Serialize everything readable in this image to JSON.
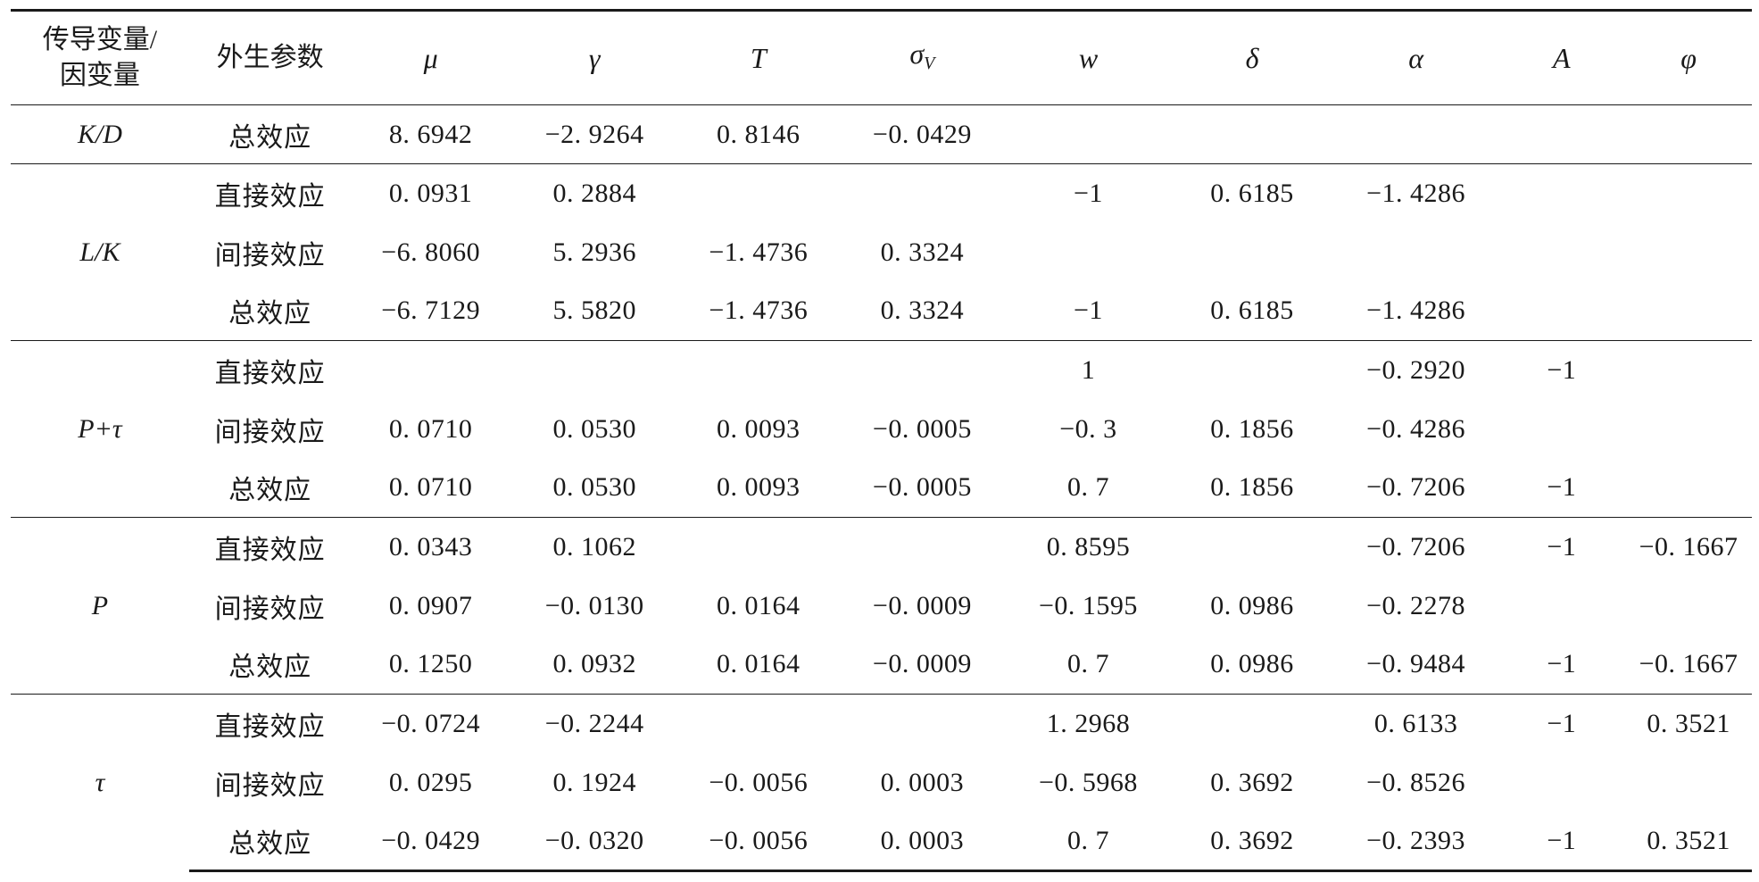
{
  "table": {
    "headers": {
      "col0_line1": "传导变量/",
      "col0_line2": "因变量",
      "col1": "外生参数",
      "mu": "μ",
      "gamma": "γ",
      "T": "T",
      "sigma": "σ",
      "sigma_sub": "V",
      "w": "w",
      "delta": "δ",
      "alpha": "α",
      "A": "A",
      "phi": "φ"
    },
    "groups": [
      {
        "variable": "K/D",
        "rows": [
          {
            "effect": "总效应",
            "mu": "8. 6942",
            "gamma": "−2. 9264",
            "T": "0. 8146",
            "sigma": "−0. 0429",
            "w": "",
            "delta": "",
            "alpha": "",
            "A": "",
            "phi": ""
          }
        ]
      },
      {
        "variable": "L/K",
        "rows": [
          {
            "effect": "直接效应",
            "mu": "0. 0931",
            "gamma": "0. 2884",
            "T": "",
            "sigma": "",
            "w": "−1",
            "delta": "0. 6185",
            "alpha": "−1. 4286",
            "A": "",
            "phi": ""
          },
          {
            "effect": "间接效应",
            "mu": "−6. 8060",
            "gamma": "5. 2936",
            "T": "−1. 4736",
            "sigma": "0. 3324",
            "w": "",
            "delta": "",
            "alpha": "",
            "A": "",
            "phi": ""
          },
          {
            "effect": "总效应",
            "mu": "−6. 7129",
            "gamma": "5. 5820",
            "T": "−1. 4736",
            "sigma": "0. 3324",
            "w": "−1",
            "delta": "0. 6185",
            "alpha": "−1. 4286",
            "A": "",
            "phi": ""
          }
        ]
      },
      {
        "variable": "P+τ",
        "rows": [
          {
            "effect": "直接效应",
            "mu": "",
            "gamma": "",
            "T": "",
            "sigma": "",
            "w": "1",
            "delta": "",
            "alpha": "−0. 2920",
            "A": "−1",
            "phi": ""
          },
          {
            "effect": "间接效应",
            "mu": "0. 0710",
            "gamma": "0. 0530",
            "T": "0. 0093",
            "sigma": "−0. 0005",
            "w": "−0. 3",
            "delta": "0. 1856",
            "alpha": "−0. 4286",
            "A": "",
            "phi": ""
          },
          {
            "effect": "总效应",
            "mu": "0. 0710",
            "gamma": "0. 0530",
            "T": "0. 0093",
            "sigma": "−0. 0005",
            "w": "0. 7",
            "delta": "0. 1856",
            "alpha": "−0. 7206",
            "A": "−1",
            "phi": ""
          }
        ]
      },
      {
        "variable": "P",
        "rows": [
          {
            "effect": "直接效应",
            "mu": "0. 0343",
            "gamma": "0. 1062",
            "T": "",
            "sigma": "",
            "w": "0. 8595",
            "delta": "",
            "alpha": "−0. 7206",
            "A": "−1",
            "phi": "−0. 1667"
          },
          {
            "effect": "间接效应",
            "mu": "0. 0907",
            "gamma": "−0. 0130",
            "T": "0. 0164",
            "sigma": "−0. 0009",
            "w": "−0. 1595",
            "delta": "0. 0986",
            "alpha": "−0. 2278",
            "A": "",
            "phi": ""
          },
          {
            "effect": "总效应",
            "mu": "0. 1250",
            "gamma": "0. 0932",
            "T": "0. 0164",
            "sigma": "−0. 0009",
            "w": "0. 7",
            "delta": "0. 0986",
            "alpha": "−0. 9484",
            "A": "−1",
            "phi": "−0. 1667"
          }
        ]
      },
      {
        "variable": "τ",
        "rows": [
          {
            "effect": "直接效应",
            "mu": "−0. 0724",
            "gamma": "−0. 2244",
            "T": "",
            "sigma": "",
            "w": "1. 2968",
            "delta": "",
            "alpha": "0. 6133",
            "A": "−1",
            "phi": "0. 3521"
          },
          {
            "effect": "间接效应",
            "mu": "0. 0295",
            "gamma": "0. 1924",
            "T": "−0. 0056",
            "sigma": "0. 0003",
            "w": "−0. 5968",
            "delta": "0. 3692",
            "alpha": "−0. 8526",
            "A": "",
            "phi": ""
          },
          {
            "effect": "总效应",
            "mu": "−0. 0429",
            "gamma": "−0. 0320",
            "T": "−0. 0056",
            "sigma": "0. 0003",
            "w": "0. 7",
            "delta": "0. 3692",
            "alpha": "−0. 2393",
            "A": "−1",
            "phi": "0. 3521"
          }
        ]
      }
    ]
  }
}
